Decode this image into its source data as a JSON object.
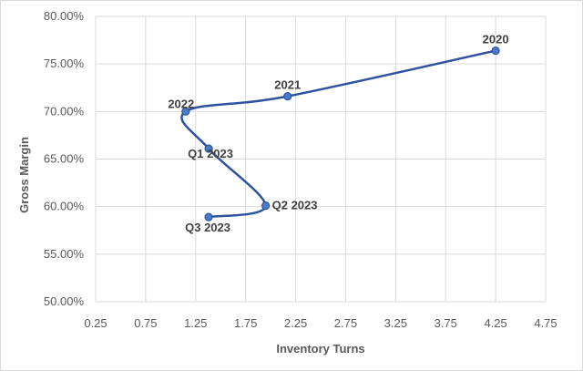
{
  "chart_data": {
    "type": "scatter",
    "title": "",
    "xlabel": "Inventory Turns",
    "ylabel": "Gross Margin",
    "xlim": [
      0.25,
      4.75
    ],
    "ylim": [
      0.5,
      0.8
    ],
    "x_ticks": [
      "0.25",
      "0.75",
      "1.25",
      "1.75",
      "2.25",
      "2.75",
      "3.25",
      "3.75",
      "4.25",
      "4.75"
    ],
    "y_ticks": [
      "50.00%",
      "55.00%",
      "60.00%",
      "65.00%",
      "70.00%",
      "75.00%",
      "80.00%"
    ],
    "grid": true,
    "line_color": "#2f52a0",
    "marker_color": "#4a7ac8",
    "points": [
      {
        "label": "2020",
        "x": 4.25,
        "y": 0.764
      },
      {
        "label": "2021",
        "x": 2.17,
        "y": 0.716
      },
      {
        "label": "2022",
        "x": 1.15,
        "y": 0.7
      },
      {
        "label": "Q1 2023",
        "x": 1.38,
        "y": 0.661
      },
      {
        "label": "Q2 2023",
        "x": 1.95,
        "y": 0.601
      },
      {
        "label": "Q3 2023",
        "x": 1.38,
        "y": 0.589
      }
    ]
  }
}
